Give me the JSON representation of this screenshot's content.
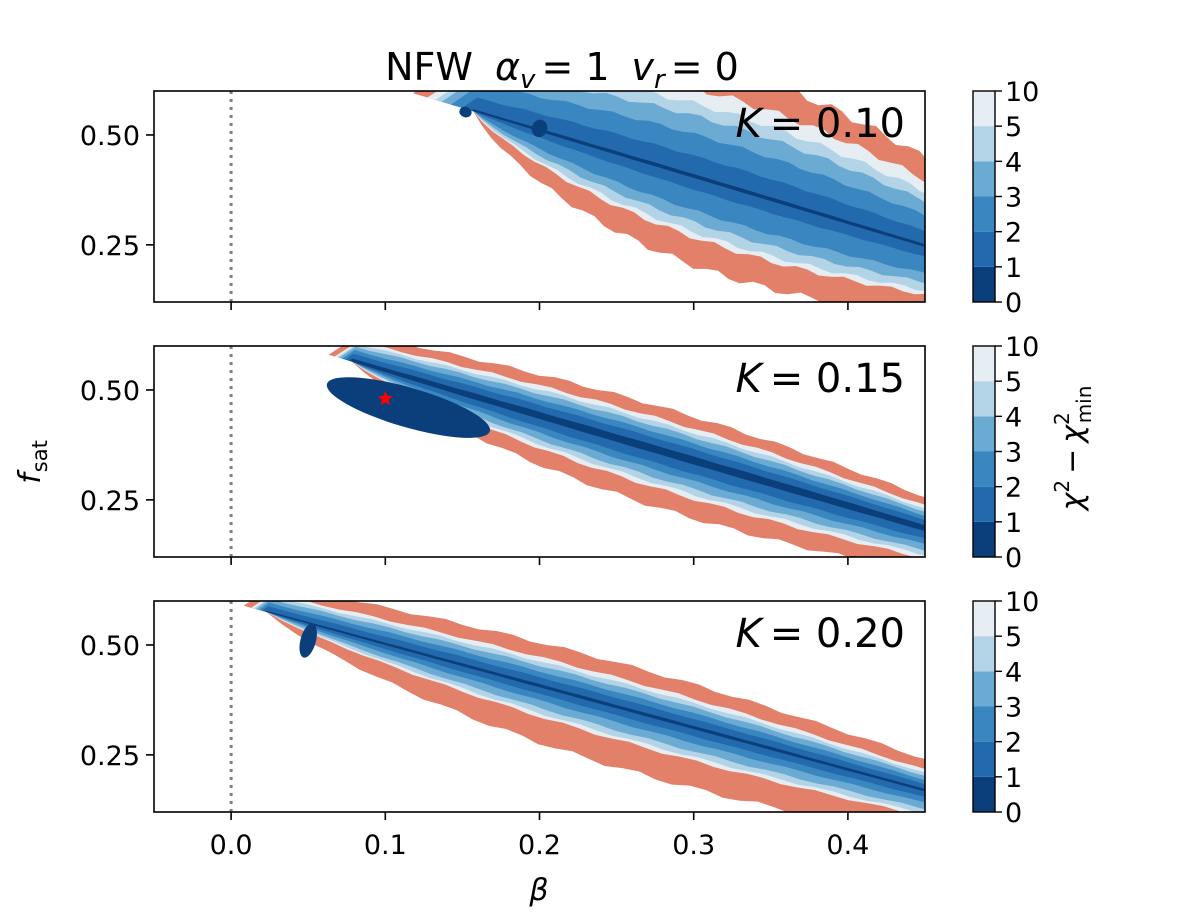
{
  "chart_data": {
    "type": "contour",
    "title": "NFW  α_v = 1  v_r = 0",
    "title_parts": {
      "model": "NFW",
      "alpha_sym": "α",
      "alpha_sub": "v",
      "alpha_val": "= 1",
      "v_sym": "v",
      "v_sub": "r",
      "v_val": "= 0"
    },
    "xlabel": "β",
    "ylabel": {
      "sym": "f",
      "sub": "sat"
    },
    "colorbar_label": {
      "chi": "χ",
      "sup": "2",
      "minus": "−",
      "sub": "min"
    },
    "xlim": [
      -0.05,
      0.45
    ],
    "ylim": [
      0.12,
      0.6
    ],
    "xticks": [
      0.0,
      0.1,
      0.2,
      0.3,
      0.4
    ],
    "xtick_labels": [
      "0.0",
      "0.1",
      "0.2",
      "0.3",
      "0.4"
    ],
    "yticks": [
      0.25,
      0.5
    ],
    "ytick_labels": [
      "0.25",
      "0.50"
    ],
    "levels": [
      0,
      1,
      2,
      3,
      4,
      5,
      10
    ],
    "level_labels": [
      "0",
      "1",
      "2",
      "3",
      "4",
      "5",
      "10"
    ],
    "level_colors": [
      "#0b3f7c",
      "#2369ad",
      "#3a86c0",
      "#6aaad3",
      "#b3d3e7",
      "#e6eef3",
      "#e3806a"
    ],
    "reference_line": {
      "x": 0.0,
      "style": "dotted",
      "color": "#808080"
    },
    "best_fit": {
      "panel": 1,
      "beta": 0.1,
      "f_sat": 0.48,
      "marker": "star",
      "color": "#ff0000"
    },
    "panels": [
      {
        "label": "K = 0.10",
        "K_value": "0.10",
        "ridge_start": [
          0.157,
          0.554
        ],
        "ridge_end": [
          0.46,
          0.236
        ],
        "anchor_half_width": [
          0.05,
          0.075
        ],
        "bands": [
          {
            "level": 10,
            "a": 2.24,
            "b": 0.38
          },
          {
            "level": 5,
            "a": 1.54,
            "b": 0.29
          },
          {
            "level": 4,
            "a": 1.4,
            "b": 0.24
          },
          {
            "level": 3,
            "a": 1.15,
            "b": 0.2
          },
          {
            "level": 2,
            "a": 0.85,
            "b": 0.14
          },
          {
            "level": 1,
            "a": 0.32,
            "b": 0.07
          },
          {
            "level": 0,
            "a": 0.02,
            "b": 0.01
          }
        ],
        "minima": [
          {
            "beta": 0.152,
            "f_sat": 0.552,
            "db": 0.004,
            "df": 0.012
          },
          {
            "beta": 0.2,
            "f_sat": 0.515,
            "db": 0.005,
            "df": 0.02
          }
        ]
      },
      {
        "label": "K = 0.15",
        "K_value": "0.15",
        "ridge_start": [
          0.078,
          0.565
        ],
        "ridge_end": [
          0.46,
          0.175
        ],
        "anchor_half_width": [
          0.02,
          0.05
        ],
        "bands": [
          {
            "level": 10,
            "a": 3.0,
            "b": 0.3
          },
          {
            "level": 5,
            "a": 2.0,
            "b": 0.22
          },
          {
            "level": 4,
            "a": 1.76,
            "b": 0.19
          },
          {
            "level": 3,
            "a": 1.46,
            "b": 0.16
          },
          {
            "level": 2,
            "a": 1.05,
            "b": 0.12
          },
          {
            "level": 1,
            "a": 0.68,
            "b": 0.08
          },
          {
            "level": 0,
            "a": 0.18,
            "b": 0.03
          }
        ],
        "minima": [
          {
            "beta": 0.115,
            "f_sat": 0.46,
            "db": 0.055,
            "df": 0.045
          }
        ]
      },
      {
        "label": "K = 0.20",
        "K_value": "0.20",
        "ridge_start": [
          0.023,
          0.575
        ],
        "ridge_end": [
          0.46,
          0.16
        ],
        "anchor_half_width": [
          0.02,
          0.05
        ],
        "bands": [
          {
            "level": 10,
            "a": 3.2,
            "b": 0.3
          },
          {
            "level": 5,
            "a": 1.75,
            "b": 0.2
          },
          {
            "level": 4,
            "a": 1.55,
            "b": 0.17
          },
          {
            "level": 3,
            "a": 1.25,
            "b": 0.14
          },
          {
            "level": 2,
            "a": 0.82,
            "b": 0.1
          },
          {
            "level": 1,
            "a": 0.45,
            "b": 0.06
          },
          {
            "level": 0,
            "a": 0.08,
            "b": 0.012
          }
        ],
        "minima": [
          {
            "beta": 0.05,
            "f_sat": 0.51,
            "db": 0.005,
            "df": 0.04
          }
        ]
      }
    ]
  }
}
